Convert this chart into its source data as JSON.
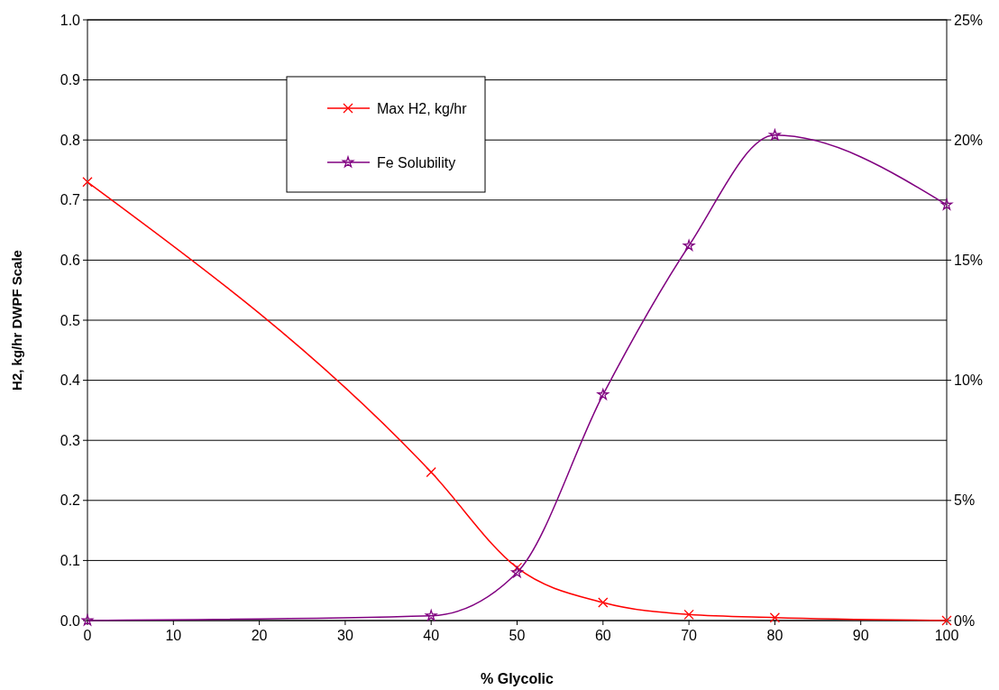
{
  "chart_data": {
    "type": "line",
    "xlabel": "% Glycolic",
    "ylabel": "H2, kg/hr DWPF Scale",
    "x": [
      0,
      40,
      50,
      60,
      70,
      80,
      100
    ],
    "xlim": [
      0,
      100
    ],
    "xticks": [
      0,
      10,
      20,
      30,
      40,
      50,
      60,
      70,
      80,
      90,
      100
    ],
    "ylim": [
      0,
      1
    ],
    "yticks": [
      {
        "value": 0,
        "label": "0.0"
      },
      0.1,
      0.2,
      0.3,
      0.4,
      0.5,
      0.6,
      0.7,
      0.8,
      0.9,
      {
        "value": 1,
        "label": "1.0"
      }
    ],
    "y2lim": [
      0,
      25
    ],
    "y2ticks": [
      {
        "value": 0,
        "label": "0%"
      },
      {
        "value": 5,
        "label": "5%"
      },
      {
        "value": 10,
        "label": "10%"
      },
      {
        "value": 15,
        "label": "15%"
      },
      {
        "value": 20,
        "label": "20%"
      },
      {
        "value": 25,
        "label": "25%"
      }
    ],
    "grid": "y",
    "legend": "top",
    "series": [
      {
        "name": "Max H2, kg/hr",
        "color": "#ff0000",
        "marker": "cross",
        "values": [
          0.73,
          0.247,
          0.088,
          0.03,
          0.01,
          0.005,
          0
        ]
      },
      {
        "name": "Fe Solubility",
        "color": "#800080",
        "marker": "star",
        "axis": "y2",
        "values": [
          0,
          0.2,
          2,
          9.4,
          15.6,
          20.2,
          17.3
        ]
      }
    ]
  }
}
